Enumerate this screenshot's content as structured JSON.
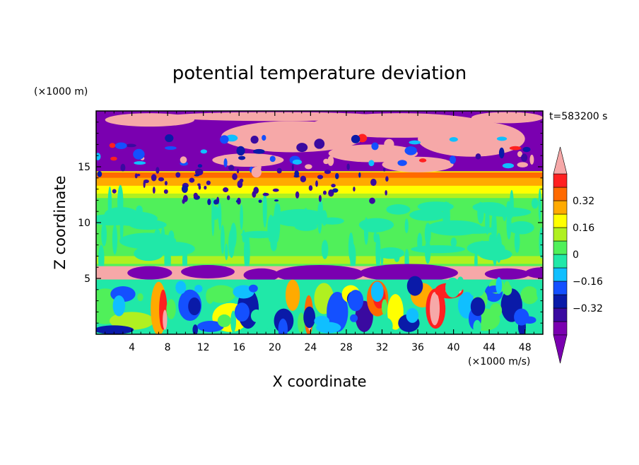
{
  "chart_data": {
    "type": "heatmap",
    "title": "potential temperature deviation",
    "xlabel": "X coordinate",
    "ylabel": "Z coordinate",
    "x_unit": "(×1000 m/s)",
    "y_unit": "(×1000 m)",
    "time_label": "t=583200 s",
    "xlim": [
      0,
      50
    ],
    "ylim": [
      0,
      20
    ],
    "x_ticks": [
      4,
      8,
      12,
      16,
      20,
      24,
      28,
      32,
      36,
      40,
      44,
      48
    ],
    "y_ticks": [
      5,
      10,
      15
    ],
    "colorbar": {
      "levels": [
        -0.48,
        -0.4,
        -0.32,
        -0.24,
        -0.16,
        -0.08,
        0,
        0.08,
        0.16,
        0.24,
        0.32,
        0.4,
        0.48
      ],
      "labeled_ticks": [
        "0.32",
        "0.16",
        "0",
        "−0.16",
        "−0.32"
      ],
      "labeled_values": [
        0.32,
        0.16,
        0,
        -0.16,
        -0.32
      ],
      "colors": [
        "#7a00b0",
        "#3a0aa0",
        "#0a1aa8",
        "#1450ff",
        "#10bfff",
        "#20e8a8",
        "#50f05a",
        "#b0f020",
        "#ffff00",
        "#ffaa00",
        "#ff6a00",
        "#ff2020",
        "#f6a8a8"
      ],
      "extend": "both"
    },
    "layers": [
      {
        "z": [
          18.2,
          19.8
        ],
        "dominant": "purple/pink mix"
      },
      {
        "z": [
          14.5,
          18.2
        ],
        "dominant": "purple/pink with blue mottling"
      },
      {
        "z": [
          12.5,
          14.5
        ],
        "dominant": "yellow/orange band"
      },
      {
        "z": [
          6,
          12.5
        ],
        "dominant": "green / teal streaks"
      },
      {
        "z": [
          4.8,
          6
        ],
        "dominant": "pink band with purple domes"
      },
      {
        "z": [
          0,
          4.8
        ],
        "dominant": "turbulent mixed colors"
      }
    ]
  }
}
